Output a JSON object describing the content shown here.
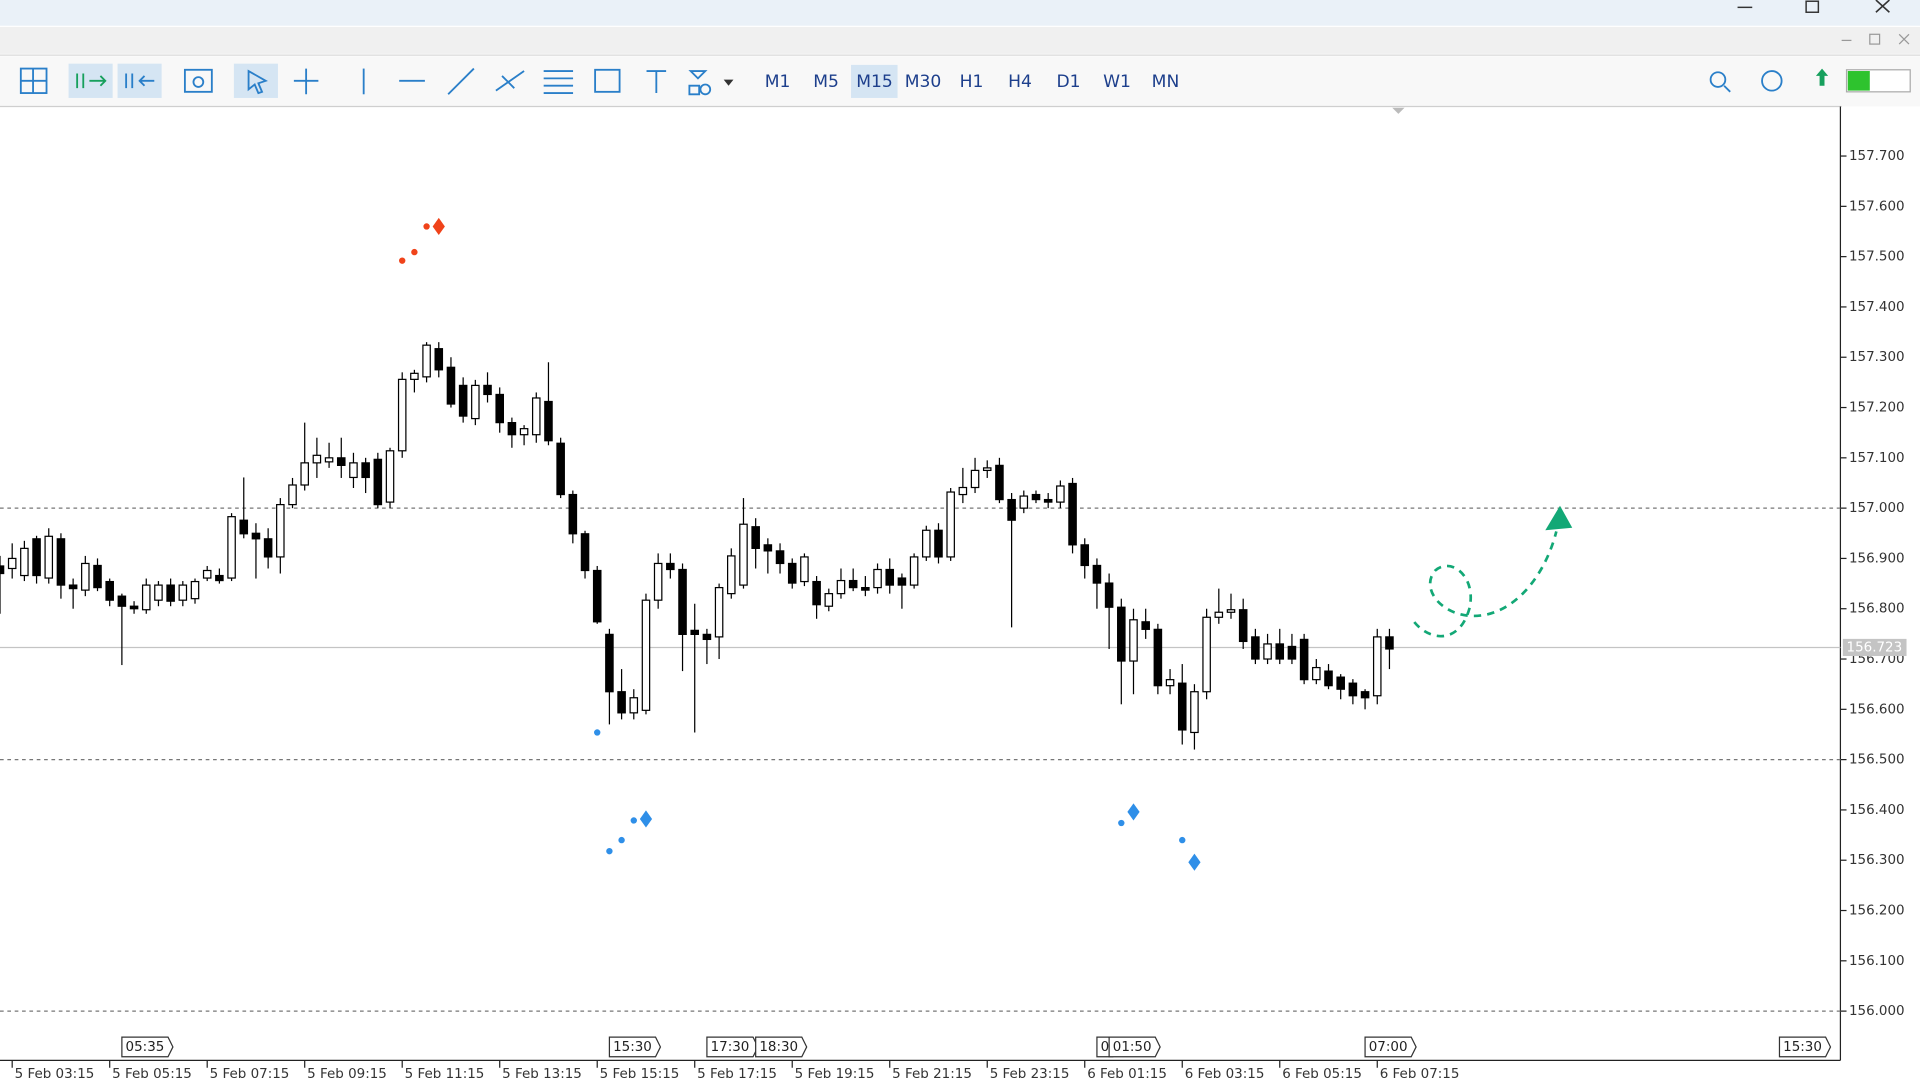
{
  "toolbar": {
    "timeframes": [
      "M1",
      "M5",
      "M15",
      "M30",
      "H1",
      "H4",
      "D1",
      "W1",
      "MN"
    ],
    "active_index": 2
  },
  "chart_data": {
    "type": "candlestick",
    "bull_color": "#ffffff",
    "bear_color": "#000000",
    "wick_color": "#000000",
    "xlim": [
      0,
      151
    ],
    "ylim": [
      155.902,
      157.796
    ],
    "yticks": [
      {
        "value": 157.7,
        "label": "157.700"
      },
      {
        "value": 157.6,
        "label": "157.600"
      },
      {
        "value": 157.5,
        "label": "157.500"
      },
      {
        "value": 157.4,
        "label": "157.400"
      },
      {
        "value": 157.3,
        "label": "157.300"
      },
      {
        "value": 157.2,
        "label": "157.200"
      },
      {
        "value": 157.1,
        "label": "157.100"
      },
      {
        "value": 157.0,
        "label": "157.000"
      },
      {
        "value": 156.9,
        "label": "156.900"
      },
      {
        "value": 156.8,
        "label": "156.800"
      },
      {
        "value": 156.7,
        "label": "156.700"
      },
      {
        "value": 156.6,
        "label": "156.600"
      },
      {
        "value": 156.5,
        "label": "156.500"
      },
      {
        "value": 156.4,
        "label": "156.400"
      },
      {
        "value": 156.3,
        "label": "156.300"
      },
      {
        "value": 156.2,
        "label": "156.200"
      },
      {
        "value": 156.1,
        "label": "156.100"
      },
      {
        "value": 156.0,
        "label": "156.000"
      }
    ],
    "xticks": [
      {
        "value": 1,
        "label": "5 Feb 03:15"
      },
      {
        "value": 9,
        "label": "5 Feb 05:15"
      },
      {
        "value": 17,
        "label": "5 Feb 07:15"
      },
      {
        "value": 25,
        "label": "5 Feb 09:15"
      },
      {
        "value": 33,
        "label": "5 Feb 11:15"
      },
      {
        "value": 41,
        "label": "5 Feb 13:15"
      },
      {
        "value": 49,
        "label": "5 Feb 15:15"
      },
      {
        "value": 57,
        "label": "5 Feb 17:15"
      },
      {
        "value": 65,
        "label": "5 Feb 19:15"
      },
      {
        "value": 73,
        "label": "5 Feb 21:15"
      },
      {
        "value": 81,
        "label": "5 Feb 23:15"
      },
      {
        "value": 89,
        "label": "6 Feb 01:15"
      },
      {
        "value": 97,
        "label": "6 Feb 03:15"
      },
      {
        "value": 105,
        "label": "6 Feb 05:15"
      },
      {
        "value": 113,
        "label": "6 Feb 07:15"
      }
    ],
    "levels": [
      157.0,
      156.5,
      156.0
    ],
    "current_price": {
      "value": 156.723,
      "label": "156.723"
    },
    "candles": [
      [
        156.885,
        156.905,
        156.79,
        156.87
      ],
      [
        156.88,
        156.93,
        156.86,
        156.9
      ],
      [
        156.866,
        156.935,
        156.855,
        156.92
      ],
      [
        156.939,
        156.945,
        156.85,
        156.866
      ],
      [
        156.861,
        156.96,
        156.85,
        156.944
      ],
      [
        156.939,
        156.95,
        156.82,
        156.847
      ],
      [
        156.847,
        156.86,
        156.8,
        156.84
      ],
      [
        156.837,
        156.905,
        156.825,
        156.89
      ],
      [
        156.886,
        156.9,
        156.835,
        156.842
      ],
      [
        156.854,
        156.86,
        156.805,
        156.817
      ],
      [
        156.825,
        156.83,
        156.688,
        156.805
      ],
      [
        156.805,
        156.815,
        156.79,
        156.8
      ],
      [
        156.798,
        156.86,
        156.79,
        156.847
      ],
      [
        156.817,
        156.855,
        156.805,
        156.847
      ],
      [
        156.847,
        156.86,
        156.805,
        156.815
      ],
      [
        156.817,
        156.855,
        156.805,
        156.847
      ],
      [
        156.82,
        156.86,
        156.81,
        156.854
      ],
      [
        156.861,
        156.885,
        156.855,
        156.876
      ],
      [
        156.866,
        156.88,
        156.85,
        156.856
      ],
      [
        156.861,
        156.99,
        156.855,
        156.983
      ],
      [
        156.976,
        157.061,
        156.94,
        156.949
      ],
      [
        156.95,
        156.97,
        156.86,
        156.939
      ],
      [
        156.939,
        156.96,
        156.88,
        156.903
      ],
      [
        156.903,
        157.02,
        156.87,
        157.007
      ],
      [
        157.007,
        157.06,
        157.0,
        157.046
      ],
      [
        157.046,
        157.17,
        157.035,
        157.09
      ],
      [
        157.09,
        157.14,
        157.06,
        157.105
      ],
      [
        157.092,
        157.13,
        157.08,
        157.1
      ],
      [
        157.1,
        157.14,
        157.06,
        157.085
      ],
      [
        157.061,
        157.11,
        157.04,
        157.09
      ],
      [
        157.09,
        157.1,
        157.03,
        157.061
      ],
      [
        157.097,
        157.11,
        157.0,
        157.007
      ],
      [
        157.012,
        157.12,
        157.0,
        157.114
      ],
      [
        157.114,
        157.27,
        157.1,
        157.256
      ],
      [
        157.256,
        157.275,
        157.23,
        157.268
      ],
      [
        157.261,
        157.33,
        157.25,
        157.324
      ],
      [
        157.317,
        157.33,
        157.26,
        157.275
      ],
      [
        157.28,
        157.3,
        157.2,
        157.207
      ],
      [
        157.244,
        157.26,
        157.17,
        157.183
      ],
      [
        157.178,
        157.255,
        157.165,
        157.244
      ],
      [
        157.244,
        157.27,
        157.21,
        157.226
      ],
      [
        157.226,
        157.24,
        157.15,
        157.17
      ],
      [
        157.17,
        157.18,
        157.12,
        157.146
      ],
      [
        157.146,
        157.165,
        157.125,
        157.158
      ],
      [
        157.146,
        157.23,
        157.13,
        157.219
      ],
      [
        157.212,
        157.29,
        157.125,
        157.134
      ],
      [
        157.129,
        157.14,
        157.02,
        157.027
      ],
      [
        157.027,
        157.035,
        156.93,
        156.949
      ],
      [
        156.949,
        156.955,
        156.86,
        156.876
      ],
      [
        156.876,
        156.885,
        156.77,
        156.774
      ],
      [
        156.749,
        156.76,
        156.57,
        156.635
      ],
      [
        156.635,
        156.68,
        156.58,
        156.593
      ],
      [
        156.593,
        156.64,
        156.58,
        156.623
      ],
      [
        156.598,
        156.83,
        156.59,
        156.817
      ],
      [
        156.817,
        156.91,
        156.8,
        156.89
      ],
      [
        156.89,
        156.91,
        156.86,
        156.878
      ],
      [
        156.878,
        156.89,
        156.676,
        156.749
      ],
      [
        156.757,
        156.81,
        156.554,
        156.749
      ],
      [
        156.749,
        156.76,
        156.69,
        156.739
      ],
      [
        156.744,
        156.85,
        156.7,
        156.842
      ],
      [
        156.83,
        156.92,
        156.82,
        156.905
      ],
      [
        156.847,
        157.02,
        156.84,
        156.968
      ],
      [
        156.963,
        156.98,
        156.88,
        156.92
      ],
      [
        156.927,
        156.94,
        156.87,
        156.915
      ],
      [
        156.915,
        156.93,
        156.87,
        156.89
      ],
      [
        156.89,
        156.9,
        156.84,
        156.851
      ],
      [
        156.854,
        156.91,
        156.845,
        156.903
      ],
      [
        156.854,
        156.865,
        156.78,
        156.808
      ],
      [
        156.805,
        156.84,
        156.795,
        156.83
      ],
      [
        156.83,
        156.88,
        156.82,
        156.856
      ],
      [
        156.856,
        156.88,
        156.835,
        156.842
      ],
      [
        156.842,
        156.865,
        156.825,
        156.837
      ],
      [
        156.842,
        156.89,
        156.83,
        156.878
      ],
      [
        156.878,
        156.9,
        156.83,
        156.847
      ],
      [
        156.861,
        156.87,
        156.8,
        156.847
      ],
      [
        156.847,
        156.91,
        156.84,
        156.903
      ],
      [
        156.903,
        156.965,
        156.895,
        156.956
      ],
      [
        156.956,
        156.97,
        156.89,
        156.903
      ],
      [
        156.903,
        157.04,
        156.895,
        157.032
      ],
      [
        157.027,
        157.08,
        157.01,
        157.041
      ],
      [
        157.041,
        157.1,
        157.03,
        157.075
      ],
      [
        157.075,
        157.095,
        157.06,
        157.08
      ],
      [
        157.085,
        157.1,
        157.01,
        157.017
      ],
      [
        157.017,
        157.03,
        156.763,
        156.976
      ],
      [
        157.0,
        157.035,
        156.99,
        157.024
      ],
      [
        157.027,
        157.035,
        157.01,
        157.017
      ],
      [
        157.017,
        157.03,
        157.0,
        157.012
      ],
      [
        157.012,
        157.055,
        157.0,
        157.044
      ],
      [
        157.049,
        157.06,
        156.91,
        156.927
      ],
      [
        156.927,
        156.94,
        156.86,
        156.886
      ],
      [
        156.886,
        156.9,
        156.8,
        156.851
      ],
      [
        156.851,
        156.87,
        156.72,
        156.803
      ],
      [
        156.803,
        156.82,
        156.61,
        156.696
      ],
      [
        156.696,
        156.8,
        156.63,
        156.778
      ],
      [
        156.774,
        156.8,
        156.74,
        156.759
      ],
      [
        156.759,
        156.77,
        156.63,
        156.647
      ],
      [
        156.647,
        156.68,
        156.63,
        156.659
      ],
      [
        156.652,
        156.69,
        156.53,
        156.559
      ],
      [
        156.554,
        156.65,
        156.52,
        156.635
      ],
      [
        156.635,
        156.8,
        156.62,
        156.783
      ],
      [
        156.783,
        156.84,
        156.77,
        156.793
      ],
      [
        156.793,
        156.83,
        156.78,
        156.798
      ],
      [
        156.798,
        156.82,
        156.72,
        156.735
      ],
      [
        156.744,
        156.76,
        156.69,
        156.7
      ],
      [
        156.7,
        156.75,
        156.69,
        156.73
      ],
      [
        156.73,
        156.76,
        156.69,
        156.7
      ],
      [
        156.725,
        156.75,
        156.69,
        156.7
      ],
      [
        156.739,
        156.75,
        156.65,
        156.659
      ],
      [
        156.659,
        156.7,
        156.65,
        156.683
      ],
      [
        156.676,
        156.69,
        156.64,
        156.647
      ],
      [
        156.664,
        156.67,
        156.62,
        156.64
      ],
      [
        156.652,
        156.66,
        156.61,
        156.627
      ],
      [
        156.635,
        156.64,
        156.6,
        156.623
      ],
      [
        156.627,
        156.76,
        156.61,
        156.744
      ],
      [
        156.744,
        156.76,
        156.68,
        156.72
      ]
    ],
    "sell_signals": {
      "color": "#f0431a",
      "points": [
        [
          33,
          157.492,
          "dot"
        ],
        [
          34,
          157.509,
          "dot"
        ],
        [
          35,
          157.56,
          "dot"
        ],
        [
          36,
          157.56,
          "diamond"
        ]
      ]
    },
    "buy_signals": {
      "color": "#2f8fe8",
      "points": [
        [
          49,
          156.554,
          "dot"
        ],
        [
          50,
          156.318,
          "dot"
        ],
        [
          51,
          156.34,
          "dot"
        ],
        [
          52,
          156.379,
          "dot"
        ],
        [
          53,
          156.382,
          "diamond"
        ],
        [
          92,
          156.374,
          "dot"
        ],
        [
          93,
          156.396,
          "diamond"
        ],
        [
          97,
          156.34,
          "dot"
        ],
        [
          98,
          156.296,
          "diamond"
        ]
      ]
    },
    "events": [
      {
        "x": 10,
        "label": "05:35"
      },
      {
        "x": 50,
        "label": "15:30"
      },
      {
        "x": 58,
        "label": "17:30"
      },
      {
        "x": 62,
        "label": "18:30"
      },
      {
        "x": 90,
        "label": "0"
      },
      {
        "x": 91,
        "label": "01:50"
      },
      {
        "x": 112,
        "label": "07:00"
      },
      {
        "x": 146,
        "label": "15:30"
      }
    ]
  }
}
